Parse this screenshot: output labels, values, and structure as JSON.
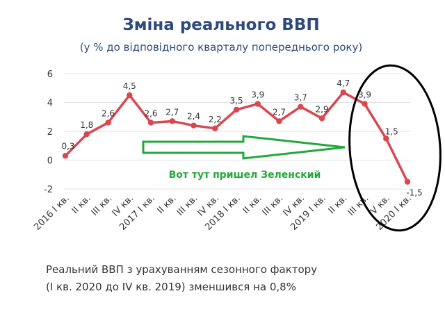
{
  "chart_data": {
    "type": "line",
    "title": "Зміна реального ВВП",
    "subtitle": "(у % до відповідного кварталу попереднього року)",
    "categories": [
      "2016 I кв.",
      "II кв.",
      "III кв.",
      "IV кв.",
      "2017 I кв.",
      "II кв.",
      "III кв.",
      "IV кв.",
      "2018 I кв.",
      "II кв.",
      "III кв.",
      "IV кв.",
      "2019 I кв.",
      "II кв.",
      "III кв.",
      "IV кв.",
      "2020 I кв."
    ],
    "series": [
      {
        "values": [
          0.3,
          1.8,
          2.6,
          4.5,
          2.6,
          2.7,
          2.4,
          2.2,
          3.5,
          3.9,
          2.7,
          3.7,
          2.9,
          4.7,
          3.9,
          1.5,
          -1.5
        ],
        "labels": [
          "0,3",
          "1,8",
          "2,6",
          "4,5",
          "2,6",
          "2,7",
          "2,4",
          "2,2",
          "3,5",
          "3,9",
          "2,7",
          "3,7",
          "2,9",
          "4,7",
          "3,9",
          "1,5",
          "-1,5"
        ]
      }
    ],
    "ylim": [
      -2,
      6
    ],
    "yticks": [
      "-2",
      "0",
      "2",
      "4",
      "6"
    ],
    "grid": true,
    "line_color": "#d9474f",
    "footer_lines": [
      "Реальний ВВП з урахуванням сезонного фактору",
      "(І кв. 2020 до IV кв. 2019) зменшився на 0,8%"
    ],
    "annotation": {
      "text": "Вот тут пришел Зеленский",
      "color": "#22a83a",
      "arrow": "right",
      "highlight": "ellipse"
    }
  }
}
